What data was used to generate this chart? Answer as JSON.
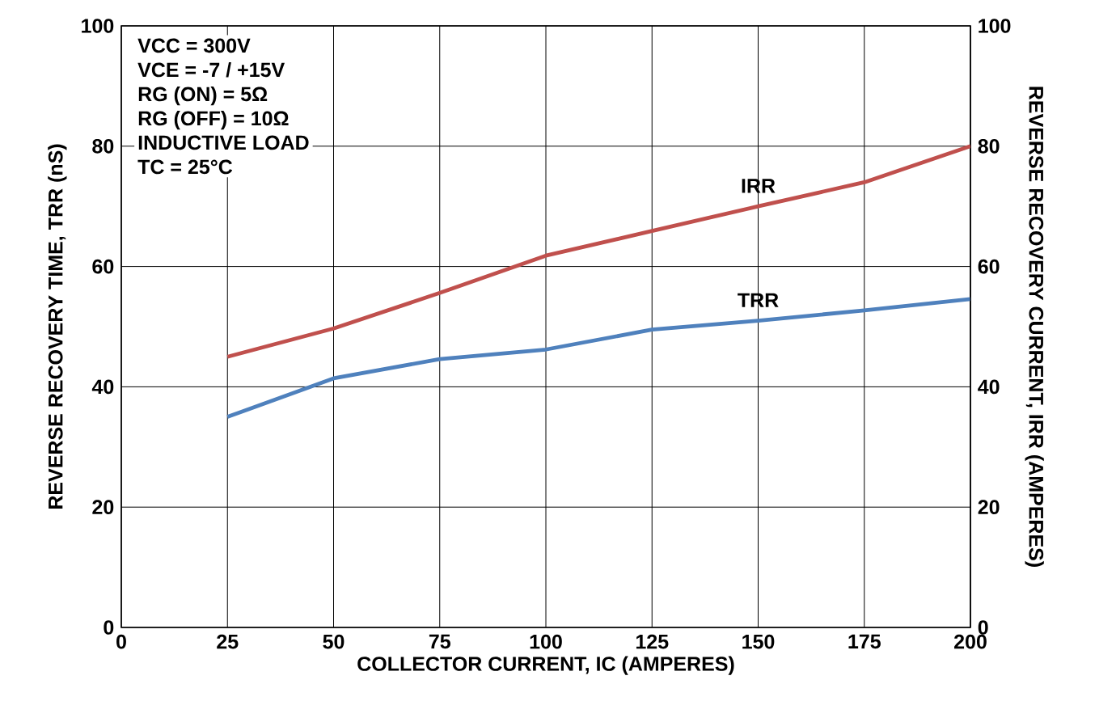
{
  "chart_data": {
    "type": "line",
    "xlabel": "COLLECTOR CURRENT, IC (AMPERES)",
    "ylabel": "REVERSE RECOVERY TIME, TRR (nS)",
    "y2label": "REVERSE RECOVERY CURRENT, IRR (AMPERES)",
    "x": [
      25,
      50,
      75,
      100,
      125,
      150,
      175,
      200
    ],
    "series": [
      {
        "name": "TRR",
        "color": "#4f81bd",
        "values": [
          35,
          41.4,
          44.6,
          46.2,
          49.5,
          51,
          52.7,
          54.6
        ]
      },
      {
        "name": "IRR",
        "color": "#c0504d",
        "axis": "y2",
        "values": [
          45,
          49.7,
          55.6,
          61.8,
          65.9,
          70,
          74,
          80
        ]
      }
    ],
    "xlim": [
      0,
      200
    ],
    "xticks": [
      0,
      25,
      50,
      75,
      100,
      125,
      150,
      175,
      200
    ],
    "ylim": [
      0,
      100
    ],
    "yticks": [
      0,
      20,
      40,
      60,
      80,
      100
    ],
    "y2lim": [
      0,
      100
    ],
    "y2ticks": [
      0,
      20,
      40,
      60,
      80,
      100
    ],
    "grid": true,
    "legend": false,
    "marker": "none",
    "line_style": "solid",
    "annotations": [
      "VCC = 300V",
      "VCE = -7 / +15V",
      "RG (ON) = 5Ω",
      "RG (OFF) = 10Ω",
      "INDUCTIVE LOAD",
      "TC = 25°C"
    ]
  }
}
